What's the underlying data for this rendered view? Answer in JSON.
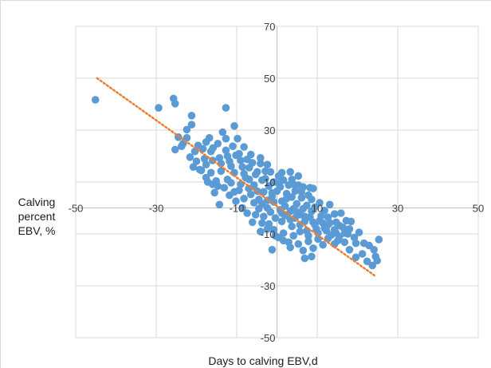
{
  "chart_data": {
    "type": "scatter",
    "xlabel": "Days to calving  EBV,d",
    "ylabel_lines": [
      "Calving",
      "percent",
      "EBV, %"
    ],
    "xlim": [
      -50,
      50
    ],
    "ylim": [
      -50,
      70
    ],
    "x_ticks": [
      -50,
      -30,
      -10,
      10,
      30,
      50
    ],
    "x_tick_labels": [
      "-50",
      "-30",
      "-10",
      "10",
      "30",
      "50"
    ],
    "y_ticks": [
      -50,
      -30,
      -10,
      10,
      30,
      50,
      70
    ],
    "y_tick_labels": [
      "-50",
      "-30",
      "-10",
      "10",
      "30",
      "50",
      "70"
    ],
    "grid": true,
    "axes_cross_at": [
      0,
      0
    ],
    "marker_color": "#5b9bd5",
    "trendline": {
      "type": "linear",
      "style": "dotted",
      "color": "#ed7d31",
      "x_range": [
        -44.7,
        24.2
      ],
      "y_at_start": 50,
      "y_at_end": -26
    },
    "series": [
      {
        "points": [
          [
            -45.1,
            41.7
          ],
          [
            -29.4,
            38.6
          ],
          [
            -25.7,
            42.2
          ],
          [
            -25.3,
            40.2
          ],
          [
            -21.2,
            35.6
          ],
          [
            -12.7,
            38.6
          ],
          [
            -10.6,
            31.6
          ],
          [
            -22.4,
            30.2
          ],
          [
            -21.2,
            32.1
          ],
          [
            -24.5,
            27.3
          ],
          [
            -22.4,
            27.0
          ],
          [
            -25.3,
            22.5
          ],
          [
            -23.7,
            23.8
          ],
          [
            -16.8,
            27.0
          ],
          [
            -13.5,
            29.2
          ],
          [
            -17.6,
            25.4
          ],
          [
            -14.7,
            24.8
          ],
          [
            -12.7,
            26.7
          ],
          [
            -11.0,
            23.8
          ],
          [
            -16.4,
            21.8
          ],
          [
            -9.8,
            26.7
          ],
          [
            -8.2,
            23.5
          ],
          [
            -10.2,
            20.3
          ],
          [
            -12.3,
            20.0
          ],
          [
            -13.9,
            17.1
          ],
          [
            -16.0,
            18.3
          ],
          [
            -18.0,
            19.0
          ],
          [
            -20.4,
            21.8
          ],
          [
            -21.6,
            19.6
          ],
          [
            -20.0,
            18.0
          ],
          [
            -20.8,
            15.8
          ],
          [
            -18.8,
            14.5
          ],
          [
            -16.4,
            13.6
          ],
          [
            -15.1,
            10.4
          ],
          [
            -17.2,
            10.0
          ],
          [
            -17.6,
            11.7
          ],
          [
            -15.5,
            5.9
          ],
          [
            -13.1,
            7.8
          ],
          [
            -11.4,
            9.7
          ],
          [
            -10.6,
            13.6
          ],
          [
            -7.8,
            11.7
          ],
          [
            -9.0,
            9.1
          ],
          [
            -6.9,
            15.5
          ],
          [
            -5.3,
            12.9
          ],
          [
            -4.1,
            17.1
          ],
          [
            -2.9,
            14.2
          ],
          [
            -6.1,
            17.4
          ],
          [
            -7.4,
            18.7
          ],
          [
            -8.6,
            15.8
          ],
          [
            -3.7,
            10.7
          ],
          [
            -5.7,
            8.8
          ],
          [
            -11.8,
            4.9
          ],
          [
            -10.2,
            2.6
          ],
          [
            -14.3,
            1.3
          ],
          [
            -8.2,
            3.6
          ],
          [
            -6.5,
            5.2
          ],
          [
            -4.5,
            3.3
          ],
          [
            -3.3,
            6.2
          ],
          [
            -2.0,
            8.4
          ],
          [
            -0.8,
            10.0
          ],
          [
            0.4,
            12.3
          ],
          [
            1.6,
            10.7
          ],
          [
            3.3,
            13.9
          ],
          [
            4.1,
            9.1
          ],
          [
            5.3,
            12.3
          ],
          [
            6.5,
            8.1
          ],
          [
            8.2,
            7.8
          ],
          [
            9.0,
            7.5
          ],
          [
            -1.2,
            4.6
          ],
          [
            0.0,
            6.5
          ],
          [
            1.2,
            2.6
          ],
          [
            2.4,
            5.5
          ],
          [
            3.7,
            4.2
          ],
          [
            4.9,
            1.6
          ],
          [
            6.1,
            3.9
          ],
          [
            7.4,
            1.0
          ],
          [
            8.6,
            3.3
          ],
          [
            9.4,
            0.3
          ],
          [
            10.6,
            2.0
          ],
          [
            11.8,
            -1.0
          ],
          [
            13.1,
            1.3
          ],
          [
            14.3,
            -2.3
          ],
          [
            -2.4,
            0.0
          ],
          [
            -1.6,
            -1.6
          ],
          [
            0.8,
            -0.7
          ],
          [
            2.0,
            -2.9
          ],
          [
            3.3,
            -1.3
          ],
          [
            4.5,
            -3.9
          ],
          [
            5.7,
            -2.6
          ],
          [
            6.9,
            -5.2
          ],
          [
            8.2,
            -3.6
          ],
          [
            9.4,
            -6.5
          ],
          [
            10.6,
            -4.9
          ],
          [
            11.8,
            -7.8
          ],
          [
            13.1,
            -5.8
          ],
          [
            14.3,
            -8.4
          ],
          [
            15.5,
            -6.8
          ],
          [
            16.8,
            -9.7
          ],
          [
            18.0,
            -8.1
          ],
          [
            19.2,
            -11.4
          ],
          [
            20.4,
            -9.4
          ],
          [
            21.6,
            -13.6
          ],
          [
            22.9,
            -14.5
          ],
          [
            24.1,
            -16.1
          ],
          [
            25.3,
            -12.2
          ],
          [
            24.5,
            -18.7
          ],
          [
            24.9,
            -20.3
          ],
          [
            23.7,
            -22.2
          ],
          [
            22.4,
            -20.6
          ],
          [
            21.2,
            -17.7
          ],
          [
            19.6,
            -19.0
          ],
          [
            18.0,
            -16.1
          ],
          [
            16.8,
            -13.2
          ],
          [
            15.5,
            -11.0
          ],
          [
            14.3,
            -13.9
          ],
          [
            12.7,
            -11.7
          ],
          [
            11.4,
            -14.2
          ],
          [
            10.2,
            -12.0
          ],
          [
            9.0,
            -15.5
          ],
          [
            7.8,
            -12.9
          ],
          [
            6.5,
            -16.4
          ],
          [
            5.3,
            -13.9
          ],
          [
            4.1,
            -10.7
          ],
          [
            2.9,
            -13.2
          ],
          [
            1.6,
            -9.7
          ],
          [
            0.4,
            -11.4
          ],
          [
            -0.8,
            -8.4
          ],
          [
            -2.0,
            -6.2
          ],
          [
            -3.3,
            -3.3
          ],
          [
            -4.5,
            -0.3
          ],
          [
            -5.7,
            2.0
          ],
          [
            -1.2,
            -16.1
          ],
          [
            8.6,
            -18.7
          ],
          [
            6.9,
            -19.4
          ],
          [
            -4.1,
            -9.1
          ],
          [
            -6.1,
            -5.5
          ],
          [
            -7.4,
            -2.0
          ],
          [
            -8.6,
            0.0
          ],
          [
            12.7,
            -3.6
          ],
          [
            15.9,
            -2.0
          ],
          [
            17.2,
            -4.9
          ],
          [
            14.7,
            -5.5
          ],
          [
            12.3,
            -8.8
          ],
          [
            10.2,
            -9.7
          ],
          [
            7.4,
            -8.8
          ],
          [
            5.7,
            -6.5
          ],
          [
            3.7,
            -7.1
          ],
          [
            1.2,
            -5.2
          ],
          [
            -0.4,
            -3.9
          ],
          [
            -2.4,
            2.9
          ],
          [
            -1.2,
            5.8
          ],
          [
            0.8,
            8.1
          ],
          [
            2.9,
            8.8
          ],
          [
            4.5,
            6.5
          ],
          [
            6.1,
            6.2
          ],
          [
            7.8,
            4.9
          ],
          [
            2.0,
            0.7
          ],
          [
            4.1,
            -0.3
          ],
          [
            6.5,
            -0.3
          ],
          [
            8.6,
            -1.3
          ],
          [
            -9.4,
            6.8
          ],
          [
            -7.0,
            7.5
          ],
          [
            -4.9,
            6.5
          ],
          [
            -3.7,
            1.6
          ],
          [
            -13.9,
            14.2
          ],
          [
            -11.4,
            16.1
          ],
          [
            -9.0,
            18.3
          ],
          [
            -6.5,
            20.6
          ],
          [
            -12.3,
            11.0
          ],
          [
            -14.7,
            8.4
          ],
          [
            -16.0,
            9.1
          ],
          [
            -10.6,
            6.2
          ],
          [
            -5.3,
            -2.6
          ],
          [
            -3.7,
            -5.8
          ],
          [
            -2.4,
            -8.1
          ],
          [
            -0.4,
            -10.7
          ],
          [
            1.6,
            -12.6
          ],
          [
            3.3,
            -15.2
          ],
          [
            1.2,
            13.6
          ],
          [
            3.7,
            11.0
          ],
          [
            5.3,
            8.8
          ],
          [
            -19.2,
            14.8
          ],
          [
            -17.6,
            16.7
          ],
          [
            -14.3,
            19.3
          ],
          [
            -12.7,
            22.2
          ],
          [
            -9.4,
            20.9
          ],
          [
            -11.8,
            18.0
          ],
          [
            -8.2,
            13.2
          ],
          [
            -6.9,
            11.0
          ],
          [
            -4.9,
            13.9
          ],
          [
            -2.9,
            11.3
          ],
          [
            -1.6,
            13.9
          ],
          [
            -0.8,
            2.3
          ],
          [
            1.2,
            -2.0
          ],
          [
            3.3,
            -4.5
          ],
          [
            5.7,
            -9.1
          ],
          [
            7.8,
            -10.7
          ],
          [
            9.8,
            -8.1
          ],
          [
            11.4,
            -5.8
          ],
          [
            13.5,
            -10.4
          ],
          [
            15.1,
            -12.6
          ],
          [
            17.6,
            -10.0
          ],
          [
            19.6,
            -13.6
          ],
          [
            -23.3,
            24.8
          ],
          [
            -19.6,
            24.1
          ],
          [
            -18.4,
            22.8
          ],
          [
            -15.9,
            23.1
          ],
          [
            -4.1,
            19.3
          ],
          [
            -2.4,
            16.7
          ],
          [
            0.4,
            9.4
          ],
          [
            2.4,
            3.6
          ],
          [
            4.9,
            -1.6
          ],
          [
            6.9,
            -3.3
          ],
          [
            9.0,
            -5.5
          ],
          [
            11.0,
            -3.0
          ],
          [
            12.7,
            -6.5
          ],
          [
            14.7,
            -9.7
          ],
          [
            16.4,
            -7.5
          ],
          [
            18.4,
            -5.2
          ]
        ]
      }
    ]
  }
}
